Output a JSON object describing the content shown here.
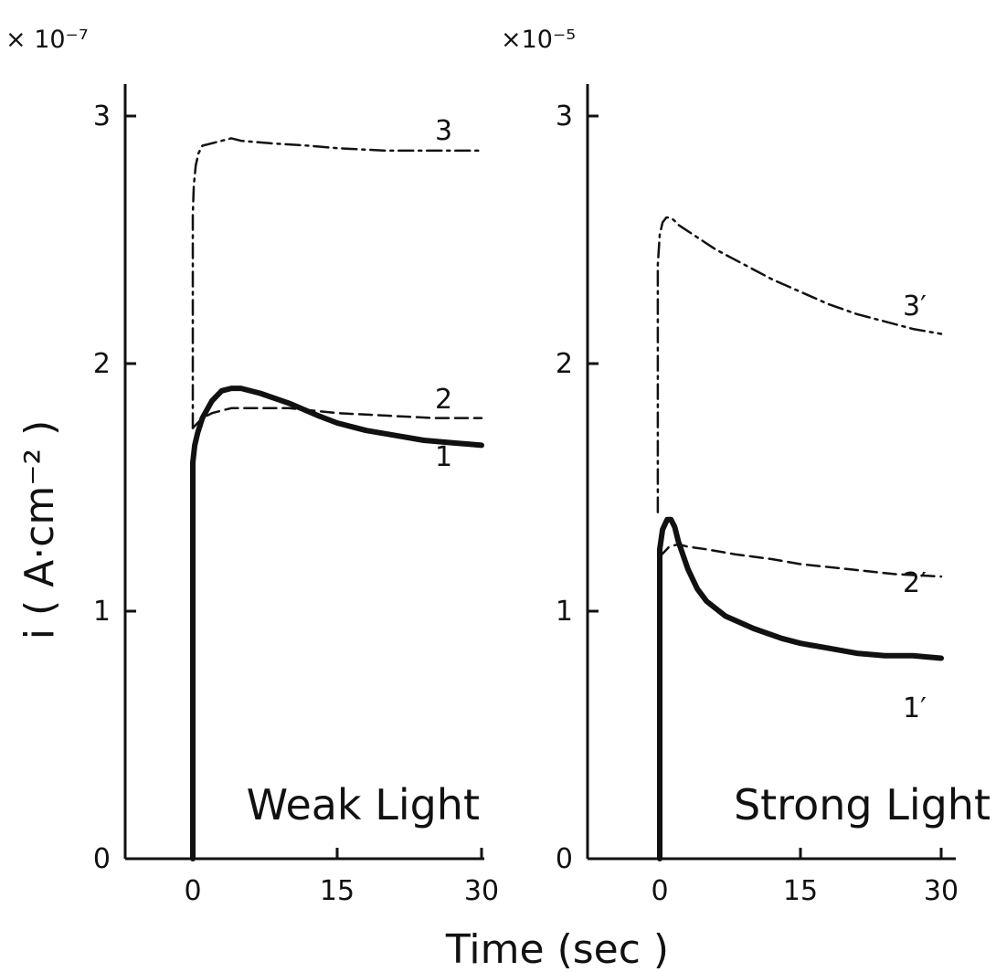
{
  "chart_data": [
    {
      "type": "line",
      "title": "Weak Light",
      "xlabel": "Time (sec )",
      "ylabel": "i ( A·cm⁻² )",
      "y_scale_label": "× 10⁻⁷",
      "xlim": [
        -6.5,
        30
      ],
      "ylim": [
        0,
        3.1
      ],
      "x_ticks": [
        0,
        15,
        30
      ],
      "x_tick_labels": [
        "0",
        "15",
        "30"
      ],
      "y_ticks": [
        0,
        1,
        2,
        3
      ],
      "y_tick_labels": [
        "0",
        "1",
        "2",
        "3"
      ],
      "series": [
        {
          "name": "1",
          "style": "solid-thick",
          "x": [
            0,
            0,
            0.2,
            0.5,
            1,
            2,
            3,
            4,
            5,
            7,
            10,
            13,
            15,
            18,
            21,
            24,
            27,
            30
          ],
          "y": [
            0,
            1.6,
            1.67,
            1.72,
            1.78,
            1.85,
            1.89,
            1.9,
            1.9,
            1.88,
            1.84,
            1.79,
            1.76,
            1.73,
            1.71,
            1.69,
            1.68,
            1.67
          ]
        },
        {
          "name": "2",
          "style": "dashed",
          "x": [
            0,
            0.5,
            1,
            2,
            3,
            4,
            6,
            8,
            10,
            15,
            20,
            25,
            30
          ],
          "y": [
            1.74,
            1.76,
            1.78,
            1.8,
            1.81,
            1.82,
            1.82,
            1.82,
            1.82,
            1.8,
            1.79,
            1.78,
            1.78
          ]
        },
        {
          "name": "3",
          "style": "dash-dot",
          "x": [
            0,
            0,
            0.1,
            0.3,
            0.6,
            1,
            2,
            3,
            4,
            5,
            8,
            12,
            15,
            20,
            25,
            30
          ],
          "y": [
            1.74,
            2.6,
            2.72,
            2.8,
            2.85,
            2.88,
            2.89,
            2.9,
            2.91,
            2.9,
            2.89,
            2.88,
            2.87,
            2.86,
            2.86,
            2.86
          ]
        }
      ],
      "curve_labels": [
        "3",
        "2",
        "1"
      ]
    },
    {
      "type": "line",
      "title": "Strong Light",
      "xlabel": "Time (sec )",
      "ylabel": "i ( A·cm⁻² )",
      "y_scale_label": "×10⁻⁵",
      "xlim": [
        -6.5,
        30
      ],
      "ylim": [
        0,
        3.1
      ],
      "x_ticks": [
        0,
        15,
        30
      ],
      "x_tick_labels": [
        "0",
        "15",
        "30"
      ],
      "y_ticks": [
        0,
        1,
        2,
        3
      ],
      "y_tick_labels": [
        "0",
        "1",
        "2",
        "3"
      ],
      "series": [
        {
          "name": "1′",
          "style": "solid-thick",
          "x": [
            0,
            0,
            0.3,
            0.8,
            1.2,
            1.6,
            2,
            3,
            4,
            5,
            7,
            10,
            13,
            15,
            18,
            21,
            24,
            27,
            30
          ],
          "y": [
            0,
            1.25,
            1.33,
            1.37,
            1.37,
            1.34,
            1.28,
            1.17,
            1.09,
            1.04,
            0.98,
            0.93,
            0.89,
            0.87,
            0.85,
            0.83,
            0.82,
            0.82,
            0.81
          ]
        },
        {
          "name": "2′",
          "style": "dashed",
          "x": [
            0,
            0.5,
            1,
            2,
            3,
            5,
            8,
            12,
            15,
            20,
            25,
            30
          ],
          "y": [
            1.22,
            1.24,
            1.26,
            1.27,
            1.26,
            1.25,
            1.23,
            1.21,
            1.19,
            1.17,
            1.15,
            1.14
          ]
        },
        {
          "name": "3′",
          "style": "dash-dot",
          "x": [
            -0.2,
            -0.2,
            0,
            0.3,
            0.7,
            1,
            1.5,
            2,
            4,
            6,
            9,
            12,
            15,
            18,
            21,
            24,
            27,
            30
          ],
          "y": [
            1.4,
            2.4,
            2.52,
            2.57,
            2.59,
            2.59,
            2.58,
            2.56,
            2.51,
            2.46,
            2.4,
            2.34,
            2.29,
            2.24,
            2.2,
            2.17,
            2.14,
            2.12
          ]
        }
      ],
      "curve_labels": [
        "3′",
        "2′",
        "1′"
      ]
    }
  ]
}
